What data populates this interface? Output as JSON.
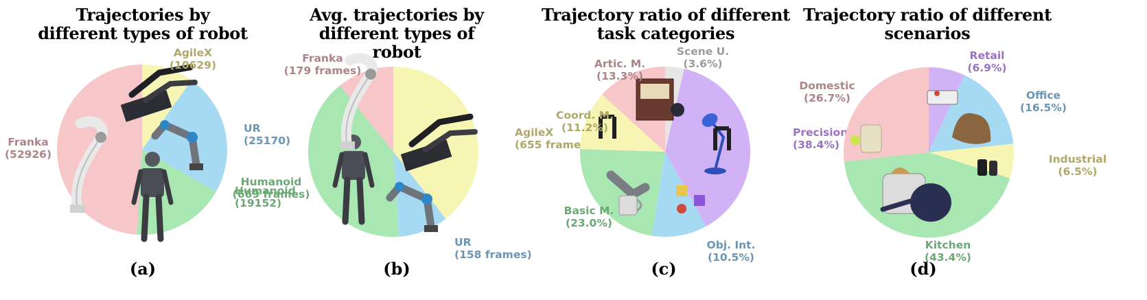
{
  "chart_data": [
    {
      "type": "pie",
      "title": "Trajectories by different types of robot",
      "caption": "(a)",
      "slices": [
        {
          "name": "AgileX",
          "value": 10629,
          "label": "(10629)",
          "color": "#f7f5b4",
          "text_color": "#b0a868",
          "images": [
            "dual-arm-robot"
          ]
        },
        {
          "name": "UR",
          "value": 25170,
          "label": "(25170)",
          "color": "#a6d9f2",
          "text_color": "#6a96b6",
          "images": [
            "ur-arm"
          ]
        },
        {
          "name": "Humanoid",
          "value": 19152,
          "label": "(19152)",
          "color": "#a8e6b2",
          "text_color": "#6ba874",
          "images": [
            "humanoid-robot"
          ]
        },
        {
          "name": "Franka",
          "value": 52926,
          "label": "(52926)",
          "color": "#f7c6c8",
          "text_color": "#ad8488",
          "images": [
            "franka-arm"
          ]
        }
      ]
    },
    {
      "type": "pie",
      "title": "Avg. trajectories by different types of robot",
      "caption": "(b)",
      "slices": [
        {
          "name": "AgileX",
          "value": 655,
          "label": "(655 frames)",
          "color": "#f7f5b4",
          "text_color": "#b0a868",
          "images": [
            "dual-arm-robot"
          ]
        },
        {
          "name": "UR",
          "value": 158,
          "label": "(158 frames)",
          "color": "#a6d9f2",
          "text_color": "#6a96b6",
          "images": [
            "ur-arm"
          ]
        },
        {
          "name": "Humanoid",
          "value": 669,
          "label": "(669 frames)",
          "color": "#a8e6b2",
          "text_color": "#6ba874",
          "images": [
            "humanoid-robot"
          ]
        },
        {
          "name": "Franka",
          "value": 179,
          "label": "(179 frames)",
          "color": "#f7c6c8",
          "text_color": "#ad8488",
          "images": [
            "franka-arm"
          ]
        }
      ]
    },
    {
      "type": "pie",
      "title": "Trajectory ratio of different task categories",
      "caption": "(c)",
      "slices": [
        {
          "name": "Scene U.",
          "value": 3.6,
          "label": "(3.6%)",
          "color": "#e6e6e6",
          "text_color": "#9a9a9a",
          "images": []
        },
        {
          "name": "Precision M.",
          "value": 38.4,
          "label": "(38.4%)",
          "color": "#d1b2f6",
          "text_color": "#9873c4",
          "images": [
            "desk-lamp",
            "gripper"
          ]
        },
        {
          "name": "Obj. Int.",
          "value": 10.5,
          "label": "(10.5%)",
          "color": "#a6d9f2",
          "text_color": "#6a96b6",
          "images": [
            "toy-blocks"
          ]
        },
        {
          "name": "Basic M.",
          "value": 23.0,
          "label": "(23.0%)",
          "color": "#a8e6b2",
          "text_color": "#6ba874",
          "images": [
            "robot-hand",
            "mug"
          ]
        },
        {
          "name": "Coord. M.",
          "value": 11.2,
          "label": "(11.2%)",
          "color": "#f7f5b4",
          "text_color": "#b0a868",
          "images": [
            "gripper"
          ]
        },
        {
          "name": "Artic. M.",
          "value": 13.3,
          "label": "(13.3%)",
          "color": "#f7c6c8",
          "text_color": "#ad8488",
          "images": [
            "cabinet",
            "pan"
          ]
        }
      ]
    },
    {
      "type": "pie",
      "title": "Trajectory ratio of different scenarios",
      "caption": "(d)",
      "slices": [
        {
          "name": "Retail",
          "value": 6.9,
          "label": "(6.9%)",
          "color": "#d1b2f6",
          "text_color": "#9873c4",
          "images": [
            "cash-box"
          ]
        },
        {
          "name": "Office",
          "value": 16.5,
          "label": "(16.5%)",
          "color": "#a6d9f2",
          "text_color": "#6a96b6",
          "images": [
            "cloth"
          ]
        },
        {
          "name": "Industrial",
          "value": 6.5,
          "label": "(6.5%)",
          "color": "#f7f5b4",
          "text_color": "#b0a868",
          "images": [
            "battery"
          ]
        },
        {
          "name": "Kitchen",
          "value": 43.4,
          "label": "(43.4%)",
          "color": "#a8e6b2",
          "text_color": "#6ba874",
          "images": [
            "toaster",
            "pot"
          ]
        },
        {
          "name": "Domestic",
          "value": 26.7,
          "label": "(26.7%)",
          "color": "#f7c6c8",
          "text_color": "#ad8488",
          "images": [
            "trash-bin",
            "ball"
          ]
        }
      ]
    }
  ]
}
